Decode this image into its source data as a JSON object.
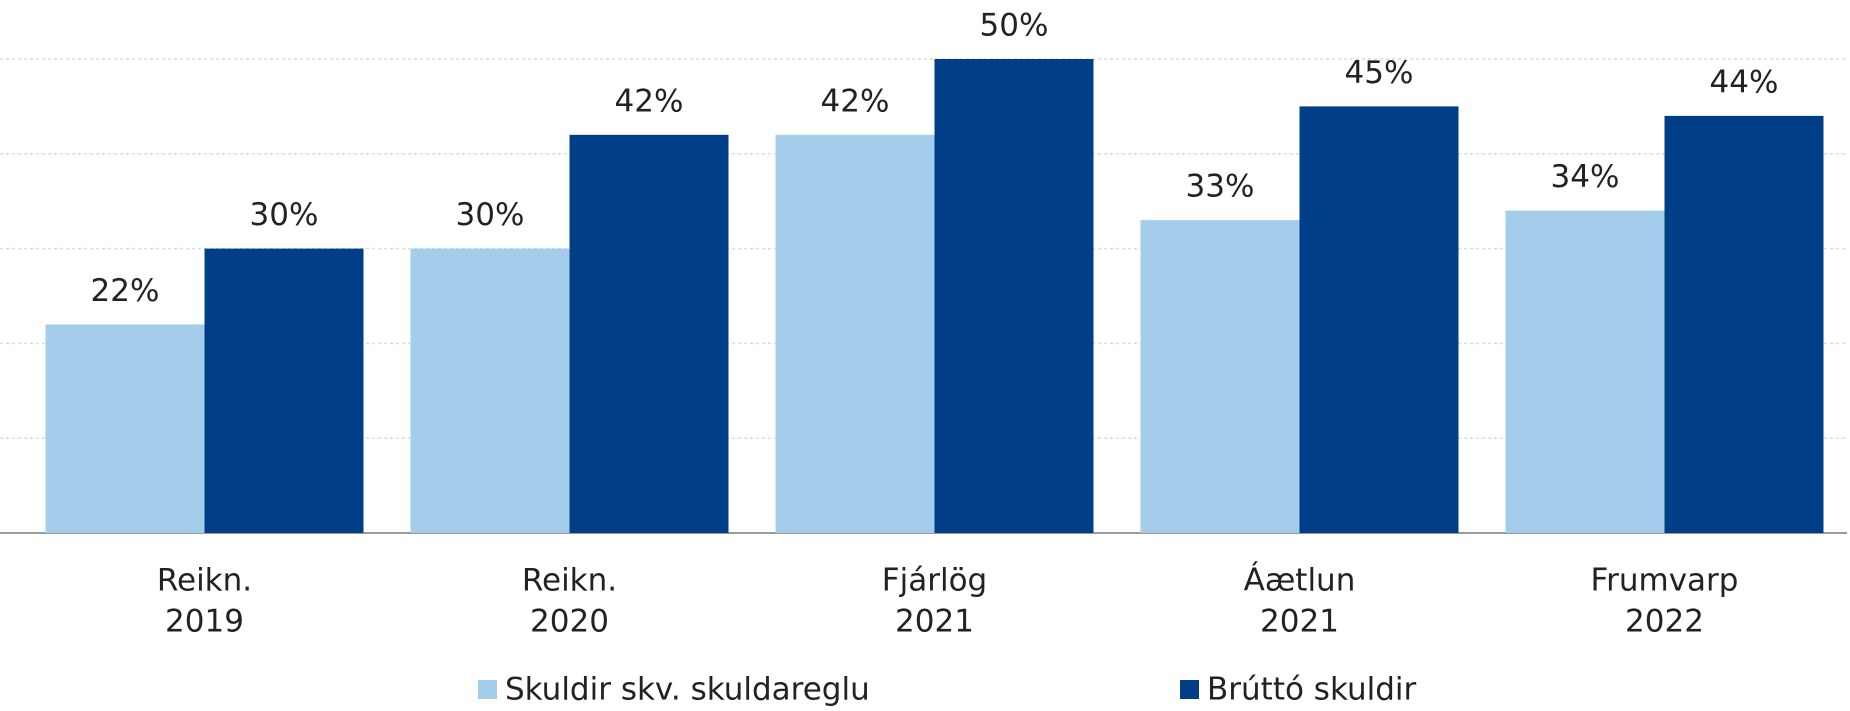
{
  "chart_data": {
    "type": "bar",
    "categories": [
      [
        "Reikn.",
        "2019"
      ],
      [
        "Reikn.",
        "2020"
      ],
      [
        "Fjárlög",
        "2021"
      ],
      [
        "Áætlun",
        "2021"
      ],
      [
        "Frumvarp",
        "2022"
      ]
    ],
    "series": [
      {
        "name": "Skuldir skv. skuldareglu",
        "color": "#a4cdeb",
        "values": [
          22,
          30,
          42,
          33,
          34
        ],
        "value_labels": [
          "22%",
          "30%",
          "42%",
          "33%",
          "34%"
        ]
      },
      {
        "name": "Brúttó skuldir",
        "color": "#003f87",
        "values": [
          30,
          42,
          50,
          45,
          44
        ],
        "value_labels": [
          "30%",
          "42%",
          "50%",
          "45%",
          "44%"
        ]
      }
    ],
    "ylim": [
      0,
      50
    ],
    "yticks": [
      0,
      10,
      20,
      30,
      40,
      50
    ],
    "grid": true,
    "legend": "bottom"
  }
}
